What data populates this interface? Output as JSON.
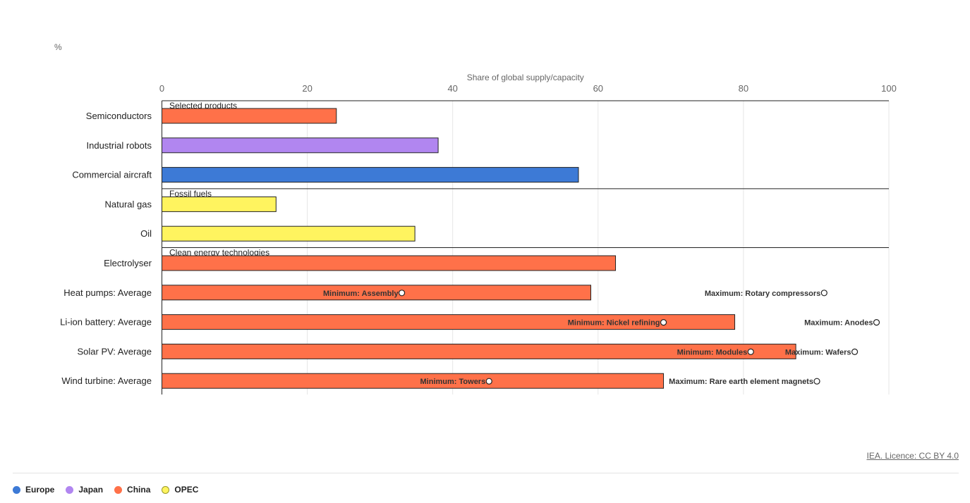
{
  "chart_data": {
    "type": "bar",
    "unit": "%",
    "xlabel": "Share of global supply/capacity",
    "xlim": [
      0,
      100
    ],
    "xticks": [
      0,
      20,
      40,
      60,
      80,
      100
    ],
    "grid": true,
    "legend_position": "bottom-left",
    "groups": [
      {
        "label": "Selected products",
        "start": 0
      },
      {
        "label": "Fossil fuels",
        "start": 3
      },
      {
        "label": "Clean energy technologies",
        "start": 5
      }
    ],
    "categories": [
      "Semiconductors",
      "Industrial robots",
      "Commercial aircraft",
      "Natural gas",
      "Oil",
      "Electrolyser",
      "Heat pumps: Average",
      "Li-ion battery: Average",
      "Solar PV: Average",
      "Wind turbine: Average"
    ],
    "bars": [
      {
        "value": 24,
        "series": "China"
      },
      {
        "value": 38,
        "series": "Japan"
      },
      {
        "value": 57.3,
        "series": "Europe"
      },
      {
        "value": 15.7,
        "series": "OPEC"
      },
      {
        "value": 34.8,
        "series": "OPEC"
      },
      {
        "value": 62.4,
        "series": "China"
      },
      {
        "value": 59,
        "series": "China"
      },
      {
        "value": 78.8,
        "series": "China"
      },
      {
        "value": 87.2,
        "series": "China"
      },
      {
        "value": 69,
        "series": "China"
      }
    ],
    "markers": [
      {
        "row": 6,
        "value": 33,
        "label": "Minimum: Assembly"
      },
      {
        "row": 6,
        "value": 91.1,
        "label": "Maximum: Rotary compressors"
      },
      {
        "row": 7,
        "value": 69,
        "label": "Minimum: Nickel refining"
      },
      {
        "row": 7,
        "value": 98.3,
        "label": "Maximum: Anodes"
      },
      {
        "row": 8,
        "value": 81,
        "label": "Minimum: Modules"
      },
      {
        "row": 8,
        "value": 95.3,
        "label": "Maximum: Wafers"
      },
      {
        "row": 9,
        "value": 45,
        "label": "Minimum: Towers"
      },
      {
        "row": 9,
        "value": 90.1,
        "label": "Maximum: Rare earth element magnets"
      }
    ],
    "series": [
      {
        "name": "Europe",
        "color": "#3d7ad6"
      },
      {
        "name": "Japan",
        "color": "#b186f0"
      },
      {
        "name": "China",
        "color": "#ff7149"
      },
      {
        "name": "OPEC",
        "color": "#fff45f"
      }
    ]
  },
  "credit": "IEA. Licence: CC BY 4.0"
}
